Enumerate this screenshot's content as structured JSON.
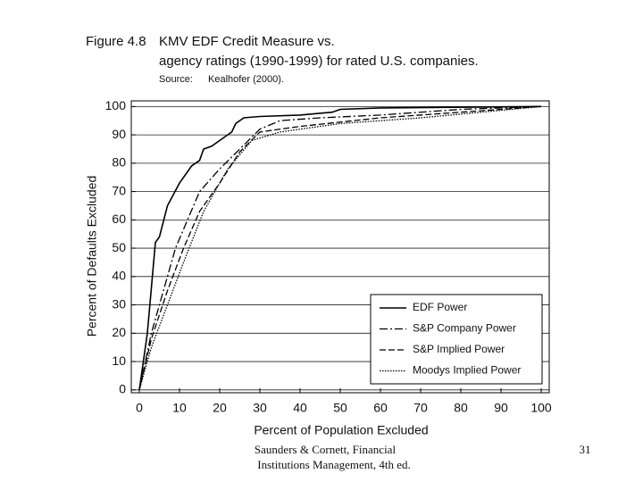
{
  "chart_data": {
    "type": "line",
    "figure_label": "Figure 4.8",
    "title": "KMV EDF Credit Measure vs.",
    "subtitle": "agency ratings (1990-1999) for rated U.S. companies.",
    "source_label": "Source:",
    "source": "Kealhofer (2000).",
    "xlabel": "Percent of Population Excluded",
    "ylabel": "Percent of Defaults Excluded",
    "xlim": [
      -2,
      102
    ],
    "ylim": [
      -1,
      102
    ],
    "xticks": [
      0,
      10,
      20,
      30,
      40,
      50,
      60,
      70,
      80,
      90,
      100
    ],
    "yticks": [
      0,
      10,
      20,
      30,
      40,
      50,
      60,
      70,
      80,
      90,
      100
    ],
    "grid": true,
    "legend": "lower right",
    "series": [
      {
        "name": "EDF Power",
        "color": "#000000",
        "style": "solid",
        "x": [
          0,
          2,
          4,
          5,
          7,
          10,
          13,
          15,
          16,
          18,
          20,
          23,
          24,
          26,
          30,
          40,
          48,
          50,
          60,
          100
        ],
        "values": [
          0,
          20,
          52,
          54,
          65,
          73,
          79,
          81,
          85,
          86,
          88,
          91,
          94,
          96,
          96.5,
          97,
          98,
          99,
          99.5,
          100
        ]
      },
      {
        "name": "S&P Company Power",
        "color": "#000000",
        "style": "dash-dot",
        "x": [
          0,
          3,
          6,
          9,
          12,
          15,
          20,
          25,
          30,
          35,
          45,
          60,
          80,
          100
        ],
        "values": [
          0,
          20,
          35,
          50,
          60,
          70,
          78,
          85,
          92,
          95,
          96,
          97,
          99,
          100
        ]
      },
      {
        "name": "S&P Implied Power",
        "color": "#000000",
        "style": "dashed",
        "x": [
          0,
          3,
          7,
          11,
          15,
          20,
          25,
          30,
          40,
          60,
          80,
          100
        ],
        "values": [
          0,
          18,
          35,
          50,
          63,
          73,
          84,
          91,
          93,
          96,
          98,
          100
        ]
      },
      {
        "name": "Moodys Implied Power",
        "color": "#000000",
        "style": "dotted",
        "x": [
          0,
          3,
          7,
          11,
          16,
          22,
          28,
          35,
          50,
          70,
          85,
          100
        ],
        "values": [
          0,
          15,
          30,
          45,
          63,
          78,
          88,
          91,
          94,
          96,
          98,
          100
        ]
      }
    ]
  },
  "footer": {
    "citation_line1": "Saunders & Cornett, Financial",
    "citation_line2": "Institutions Management, 4th ed.",
    "page": "31"
  }
}
